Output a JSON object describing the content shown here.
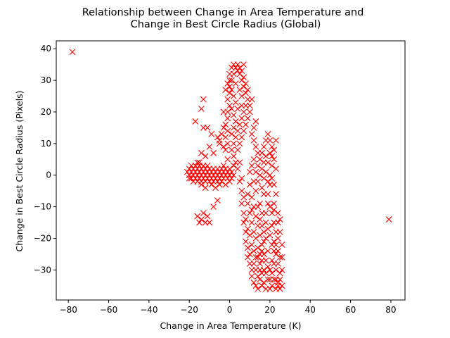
{
  "chart_data": {
    "type": "scatter",
    "title_lines": [
      "Relationship between Change in Area Temperature and",
      "Change in Best Circle Radius (Global)"
    ],
    "xlabel": "Change in Area Temperature (K)",
    "ylabel": "Change in Best Circle Radius (Pixels)",
    "xlim": [
      -86,
      87
    ],
    "ylim": [
      -39.5,
      42.5
    ],
    "xticks": [
      -80,
      -60,
      -40,
      -20,
      0,
      20,
      40,
      60,
      80
    ],
    "yticks": [
      -30,
      -20,
      -10,
      0,
      10,
      20,
      30,
      40
    ],
    "grid": false,
    "marker": "x",
    "color": "#ff0000",
    "points": [
      [
        -78,
        39
      ],
      [
        79,
        -14
      ],
      [
        -13,
        24
      ],
      [
        -14,
        21
      ],
      [
        -17,
        17
      ],
      [
        -13,
        15
      ],
      [
        -11,
        15
      ],
      [
        -9,
        13
      ],
      [
        -10,
        9
      ],
      [
        -8,
        7
      ],
      [
        -12,
        6
      ],
      [
        -14,
        7
      ],
      [
        -15,
        4
      ],
      [
        -16,
        -13
      ],
      [
        -13,
        -12
      ],
      [
        -11,
        -13
      ],
      [
        -14,
        -14
      ],
      [
        -12,
        -15
      ],
      [
        -10,
        -15
      ],
      [
        -15,
        -15
      ],
      [
        -8,
        -10
      ],
      [
        -6,
        -8
      ],
      [
        -21,
        1
      ],
      [
        -20,
        0
      ],
      [
        -20,
        2
      ],
      [
        -19,
        -1
      ],
      [
        -19,
        1
      ],
      [
        -18,
        0
      ],
      [
        -18,
        2
      ],
      [
        -18,
        -2
      ],
      [
        -17,
        1
      ],
      [
        -17,
        -1
      ],
      [
        -17,
        3
      ],
      [
        -16,
        0
      ],
      [
        -16,
        2
      ],
      [
        -16,
        -2
      ],
      [
        -15,
        1
      ],
      [
        -15,
        -1
      ],
      [
        -15,
        3
      ],
      [
        -14,
        0
      ],
      [
        -14,
        2
      ],
      [
        -14,
        -2
      ],
      [
        -14,
        -3
      ],
      [
        -13,
        1
      ],
      [
        -13,
        -1
      ],
      [
        -13,
        3
      ],
      [
        -12,
        0
      ],
      [
        -12,
        2
      ],
      [
        -12,
        -2
      ],
      [
        -11,
        1
      ],
      [
        -11,
        -1
      ],
      [
        -11,
        3
      ],
      [
        -10,
        0
      ],
      [
        -10,
        2
      ],
      [
        -10,
        -2
      ],
      [
        -9,
        1
      ],
      [
        -9,
        -1
      ],
      [
        -8,
        0
      ],
      [
        -8,
        2
      ],
      [
        -8,
        -2
      ],
      [
        -7,
        1
      ],
      [
        -7,
        -1
      ],
      [
        -6,
        0
      ],
      [
        -6,
        2
      ],
      [
        -6,
        -2
      ],
      [
        -5,
        1
      ],
      [
        -5,
        -1
      ],
      [
        -4,
        0
      ],
      [
        -4,
        2
      ],
      [
        -4,
        -2
      ],
      [
        -3,
        1
      ],
      [
        -3,
        -1
      ],
      [
        -2,
        0
      ],
      [
        -2,
        2
      ],
      [
        -2,
        -3
      ],
      [
        -1,
        1
      ],
      [
        -1,
        -1
      ],
      [
        0,
        0
      ],
      [
        0,
        2
      ],
      [
        0,
        -2
      ],
      [
        1,
        1
      ],
      [
        1,
        -1
      ],
      [
        2,
        0
      ],
      [
        2,
        3
      ],
      [
        -3,
        3
      ],
      [
        -5,
        -3
      ],
      [
        -7,
        -4
      ],
      [
        -9,
        -3
      ],
      [
        -12,
        -4
      ],
      [
        -16,
        4
      ],
      [
        -19,
        3
      ],
      [
        -20,
        -1
      ],
      [
        -1,
        5
      ],
      [
        -2,
        8
      ],
      [
        -1,
        10
      ],
      [
        -2,
        12
      ],
      [
        -1,
        14
      ],
      [
        -2,
        16
      ],
      [
        -1,
        18
      ],
      [
        -1,
        20
      ],
      [
        0,
        22
      ],
      [
        -1,
        24
      ],
      [
        0,
        26
      ],
      [
        0,
        28
      ],
      [
        1,
        30
      ],
      [
        0,
        32
      ],
      [
        1,
        34
      ],
      [
        2,
        35
      ],
      [
        3,
        34
      ],
      [
        4,
        33
      ],
      [
        4,
        35
      ],
      [
        5,
        34
      ],
      [
        5,
        32
      ],
      [
        6,
        33
      ],
      [
        6,
        30
      ],
      [
        7,
        31
      ],
      [
        7,
        28
      ],
      [
        8,
        29
      ],
      [
        8,
        26
      ],
      [
        9,
        27
      ],
      [
        9,
        24
      ],
      [
        8,
        22
      ],
      [
        7,
        20
      ],
      [
        6,
        18
      ],
      [
        5,
        16
      ],
      [
        4,
        14
      ],
      [
        3,
        12
      ],
      [
        2,
        10
      ],
      [
        1,
        8
      ],
      [
        2,
        6
      ],
      [
        3,
        4
      ],
      [
        4,
        8
      ],
      [
        5,
        10
      ],
      [
        6,
        12
      ],
      [
        7,
        14
      ],
      [
        8,
        16
      ],
      [
        9,
        18
      ],
      [
        10,
        20
      ],
      [
        10,
        22
      ],
      [
        0,
        30
      ],
      [
        1,
        27
      ],
      [
        2,
        25
      ],
      [
        3,
        23
      ],
      [
        1,
        21
      ],
      [
        2,
        19
      ],
      [
        3,
        17
      ],
      [
        2,
        15
      ],
      [
        1,
        13
      ],
      [
        3,
        29
      ],
      [
        5,
        27
      ],
      [
        6,
        25
      ],
      [
        4,
        21
      ],
      [
        -1,
        29
      ],
      [
        -2,
        27
      ],
      [
        -3,
        20
      ],
      [
        -3,
        15
      ],
      [
        -3,
        9
      ],
      [
        2,
        32
      ],
      [
        6,
        22
      ],
      [
        11,
        24
      ],
      [
        7,
        35
      ],
      [
        -4,
        13
      ],
      [
        -5,
        11
      ],
      [
        -6,
        12
      ],
      [
        -5,
        10
      ],
      [
        4,
        2
      ],
      [
        5,
        -2
      ],
      [
        6,
        -5
      ],
      [
        6,
        -9
      ],
      [
        7,
        -12
      ],
      [
        7,
        -15
      ],
      [
        8,
        -18
      ],
      [
        8,
        -21
      ],
      [
        9,
        -23
      ],
      [
        9,
        -26
      ],
      [
        10,
        -28
      ],
      [
        11,
        -30
      ],
      [
        11,
        -32
      ],
      [
        12,
        -34
      ],
      [
        13,
        -35
      ],
      [
        14,
        -36
      ],
      [
        15,
        -33
      ],
      [
        15,
        -30
      ],
      [
        16,
        -27
      ],
      [
        16,
        -24
      ],
      [
        17,
        -21
      ],
      [
        17,
        -18
      ],
      [
        18,
        -15
      ],
      [
        18,
        -12
      ],
      [
        19,
        -9
      ],
      [
        19,
        -6
      ],
      [
        20,
        -3
      ],
      [
        20,
        0
      ],
      [
        21,
        3
      ],
      [
        21,
        6
      ],
      [
        21,
        9
      ],
      [
        20,
        11
      ],
      [
        19,
        13
      ],
      [
        18,
        11
      ],
      [
        17,
        9
      ],
      [
        16,
        7
      ],
      [
        15,
        5
      ],
      [
        14,
        7
      ],
      [
        13,
        9
      ],
      [
        12,
        11
      ],
      [
        11,
        13
      ],
      [
        12,
        15
      ],
      [
        13,
        17
      ],
      [
        12,
        5
      ],
      [
        11,
        3
      ],
      [
        10,
        1
      ],
      [
        10,
        -3
      ],
      [
        9,
        -6
      ],
      [
        9,
        -9
      ],
      [
        10,
        -12
      ],
      [
        11,
        -15
      ],
      [
        12,
        -18
      ],
      [
        13,
        -20
      ],
      [
        14,
        -23
      ],
      [
        14,
        -26
      ],
      [
        15,
        -28
      ],
      [
        16,
        -31
      ],
      [
        17,
        -34
      ],
      [
        18,
        -36
      ],
      [
        19,
        -33
      ],
      [
        20,
        -30
      ],
      [
        21,
        -27
      ],
      [
        22,
        -24
      ],
      [
        22,
        -21
      ],
      [
        23,
        -18
      ],
      [
        22,
        -15
      ],
      [
        21,
        -12
      ],
      [
        22,
        -9
      ],
      [
        23,
        -6
      ],
      [
        22,
        -3
      ],
      [
        21,
        -1
      ],
      [
        23,
        2
      ],
      [
        22,
        5
      ],
      [
        23,
        -25
      ],
      [
        24,
        -28
      ],
      [
        25,
        -31
      ],
      [
        24,
        -34
      ],
      [
        25,
        -36
      ],
      [
        23,
        -36
      ],
      [
        21,
        -35
      ],
      [
        20,
        -33
      ],
      [
        19,
        -29
      ],
      [
        18,
        -27
      ],
      [
        17,
        -25
      ],
      [
        16,
        -22
      ],
      [
        15,
        -19
      ],
      [
        14,
        -16
      ],
      [
        13,
        -13
      ],
      [
        12,
        -10
      ],
      [
        11,
        -7
      ],
      [
        13,
        -5
      ],
      [
        14,
        -2
      ],
      [
        15,
        0
      ],
      [
        16,
        2
      ],
      [
        17,
        4
      ],
      [
        18,
        6
      ],
      [
        19,
        4
      ],
      [
        20,
        7
      ],
      [
        22,
        8
      ],
      [
        23,
        11
      ],
      [
        24,
        -12
      ],
      [
        25,
        -14
      ],
      [
        25,
        -18
      ],
      [
        26,
        -22
      ],
      [
        26,
        -26
      ],
      [
        26,
        -30
      ],
      [
        25,
        -33
      ],
      [
        26,
        -35
      ],
      [
        24,
        -20
      ],
      [
        23,
        -30
      ],
      [
        22,
        -33
      ],
      [
        20,
        -36
      ],
      [
        16,
        -35
      ],
      [
        14,
        -32
      ],
      [
        12,
        -28
      ],
      [
        10,
        -25
      ],
      [
        8,
        -14
      ],
      [
        7,
        -7
      ],
      [
        6,
        -1
      ],
      [
        5,
        4
      ],
      [
        12,
        -24
      ],
      [
        13,
        -30
      ],
      [
        19,
        -24
      ],
      [
        20,
        -19
      ],
      [
        21,
        -16
      ],
      [
        18,
        -20
      ],
      [
        17,
        -30
      ],
      [
        16,
        -12
      ],
      [
        15,
        -9
      ],
      [
        17,
        -6
      ],
      [
        19,
        -2
      ],
      [
        18,
        1
      ],
      [
        20,
        -10
      ],
      [
        21,
        -22
      ],
      [
        24,
        -24
      ],
      [
        25,
        -26
      ],
      [
        23,
        -22
      ],
      [
        19,
        -17
      ],
      [
        15,
        -25
      ],
      [
        13,
        -26
      ],
      [
        11,
        -22
      ],
      [
        10,
        -19
      ],
      [
        9,
        -17
      ],
      [
        11,
        -11
      ],
      [
        14,
        -10
      ],
      [
        16,
        -4
      ],
      [
        17,
        -1
      ],
      [
        14,
        3
      ],
      [
        13,
        1
      ],
      [
        12,
        -2
      ],
      [
        23,
        -33
      ],
      [
        22,
        -28
      ],
      [
        24,
        -35
      ],
      [
        21,
        -31
      ],
      [
        18,
        -31
      ],
      [
        15,
        -14
      ],
      [
        16,
        -16
      ],
      [
        24,
        -15
      ],
      [
        22,
        -11
      ]
    ]
  }
}
